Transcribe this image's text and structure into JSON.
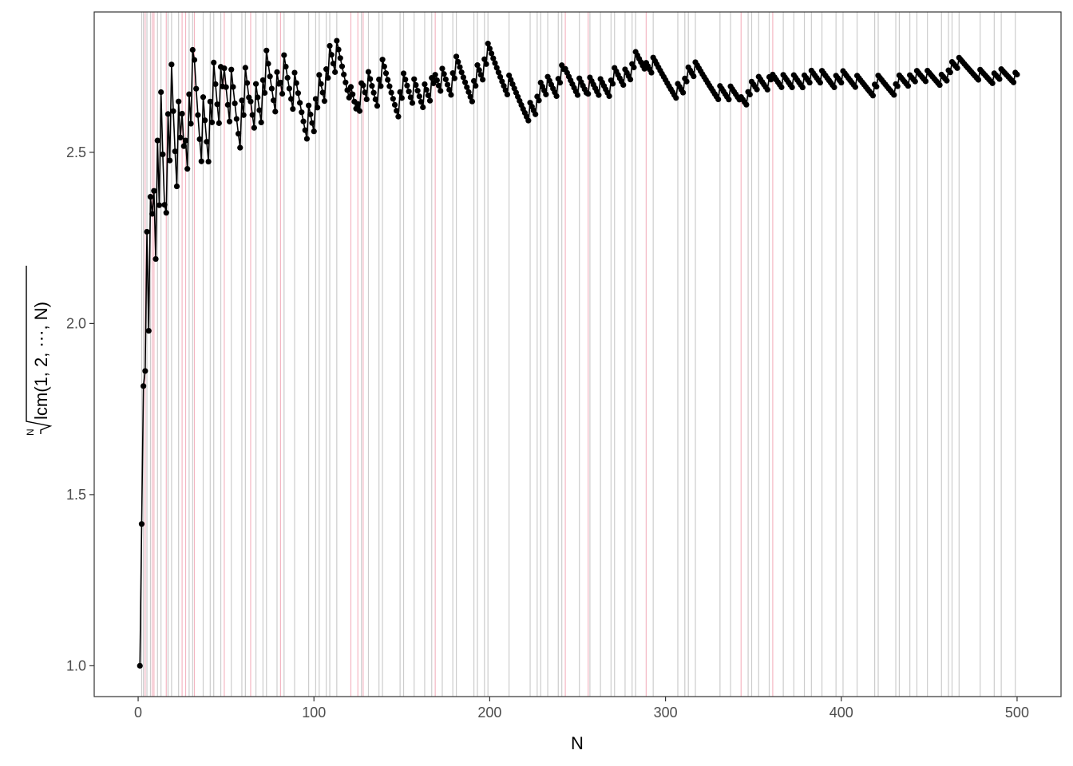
{
  "chart_data": {
    "type": "line",
    "title": "",
    "xlabel": "N",
    "ylabel": "lcm(1, 2, ⋯, N)",
    "ylabel_root_index": "N",
    "xlim": [
      -25,
      525
    ],
    "ylim": [
      0.91,
      2.91
    ],
    "x_ticks": [
      0,
      100,
      200,
      300,
      400,
      500
    ],
    "y_ticks": [
      1.0,
      1.5,
      2.0,
      2.5
    ],
    "x_tick_labels": [
      "0",
      "100",
      "200",
      "300",
      "400",
      "500"
    ],
    "y_tick_labels": [
      "1.0",
      "1.5",
      "2.0",
      "2.5"
    ],
    "grid": false,
    "n_max": 500,
    "series": [
      {
        "description": "N-th root of lcm(1..N) for N = 1..500, line with point markers",
        "color": "#000000"
      }
    ],
    "vertical_lines": {
      "primes_color": "#cccccc",
      "prime_powers_color": "#f4b6c2"
    },
    "colors": {
      "background": "#ffffff",
      "panel_border": "#333333",
      "text": "#4d4d4d",
      "series": "#000000"
    }
  }
}
